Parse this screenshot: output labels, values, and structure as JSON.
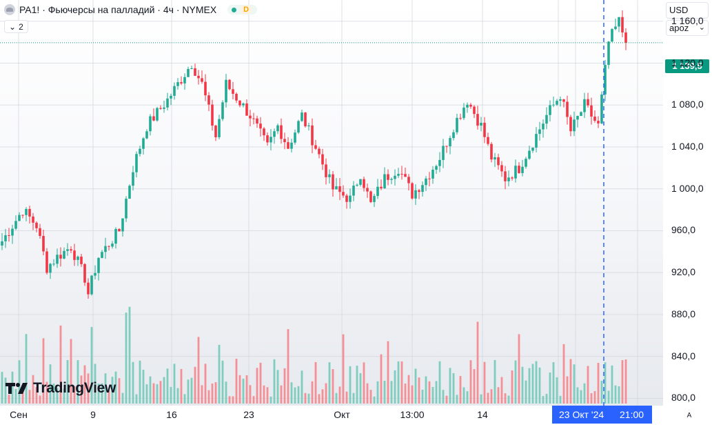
{
  "header": {
    "symbol_title": "PA1! · Фьючерсы на палладий · 4ч · NYMEX",
    "market_status_badge": "D",
    "collapse_count": "2"
  },
  "price_scale": {
    "currency": "USD",
    "unit": "apoz",
    "last_price_label": "1 139,5",
    "tick_labels": [
      "1 160,0",
      "1 120,0",
      "1 080,0",
      "1 040,0",
      "1 000,0",
      "960,0",
      "920,0",
      "880,0",
      "840,0",
      "800,0"
    ],
    "auto_label": "A"
  },
  "time_scale": {
    "tick_labels": [
      "Сен",
      "9",
      "16",
      "23",
      "Окт",
      "13:00",
      "14"
    ],
    "crosshair_date": "23 Окт '24",
    "crosshair_time": "21:00"
  },
  "branding": {
    "logo_text": "TradingView"
  },
  "colors": {
    "up": "#22ab94",
    "down": "#f23645",
    "volume_up": "#7fcdbf",
    "volume_down": "#f58f96",
    "crosshair": "#2962ff",
    "last_price": "#089981"
  },
  "chart_data": {
    "type": "candlestick",
    "title": "PA1! · Фьючерсы на палладий · 4ч · NYMEX",
    "currency": "USD",
    "ylim": [
      800,
      1175
    ],
    "last_price": 1139.5,
    "grid": true,
    "waypoints": [
      [
        0,
        950
      ],
      [
        6,
        980
      ],
      [
        10,
        965
      ],
      [
        13,
        925
      ],
      [
        16,
        935
      ],
      [
        20,
        945
      ],
      [
        24,
        915
      ],
      [
        25,
        900
      ],
      [
        28,
        935
      ],
      [
        34,
        960
      ],
      [
        38,
        1020
      ],
      [
        42,
        1060
      ],
      [
        48,
        1085
      ],
      [
        55,
        1120
      ],
      [
        58,
        1100
      ],
      [
        62,
        1050
      ],
      [
        65,
        1100
      ],
      [
        72,
        1070
      ],
      [
        77,
        1040
      ],
      [
        80,
        1060
      ],
      [
        83,
        1040
      ],
      [
        87,
        1070
      ],
      [
        91,
        1040
      ],
      [
        96,
        1000
      ],
      [
        101,
        990
      ],
      [
        104,
        1015
      ],
      [
        107,
        985
      ],
      [
        111,
        1010
      ],
      [
        115,
        1020
      ],
      [
        119,
        995
      ],
      [
        123,
        1010
      ],
      [
        127,
        1030
      ],
      [
        131,
        1060
      ],
      [
        135,
        1085
      ],
      [
        139,
        1060
      ],
      [
        142,
        1030
      ],
      [
        146,
        1010
      ],
      [
        150,
        1020
      ],
      [
        154,
        1045
      ],
      [
        158,
        1070
      ],
      [
        162,
        1090
      ],
      [
        165,
        1055
      ],
      [
        169,
        1080
      ],
      [
        173,
        1060
      ],
      [
        176,
        1140
      ],
      [
        179,
        1160
      ],
      [
        181,
        1140
      ]
    ]
  }
}
